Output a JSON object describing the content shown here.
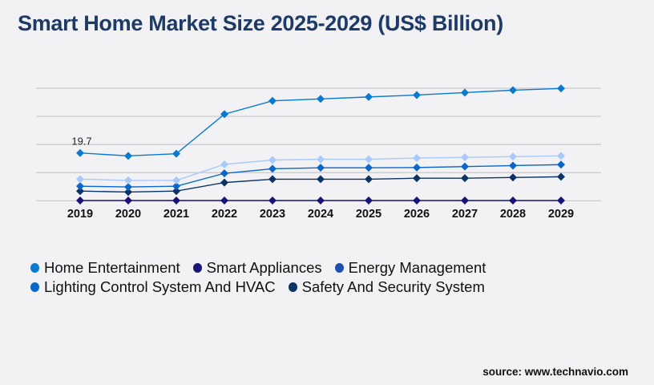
{
  "title": "Smart Home Market Size 2025-2029 (US$ Billion)",
  "source": "source: www.technavio.com",
  "chart_data": {
    "type": "line",
    "title": "Smart Home Market Size 2025-2029 (US$ Billion)",
    "xlabel": "",
    "ylabel": "",
    "categories": [
      "2019",
      "2020",
      "2021",
      "2022",
      "2023",
      "2024",
      "2025",
      "2026",
      "2027",
      "2028",
      "2029"
    ],
    "ylim": [
      0,
      46.4
    ],
    "grid": true,
    "legend_position": "bottom",
    "annotations": [
      {
        "series": "Home Entertainment",
        "category": "2019",
        "text": "19.7"
      }
    ],
    "series": [
      {
        "name": "Home Entertainment",
        "color": "#0a7ad0",
        "legend_color": "#0a7ad0",
        "values": [
          19.7,
          18.5,
          19.4,
          35.7,
          41.2,
          42.0,
          42.8,
          43.6,
          44.6,
          45.6,
          46.3
        ]
      },
      {
        "name": "Smart Appliances",
        "color": "#1b1478",
        "legend_color": "#1b1478",
        "values": [
          0.1,
          0.1,
          0.1,
          0.1,
          0.1,
          0.1,
          0.1,
          0.1,
          0.1,
          0.1,
          0.1
        ]
      },
      {
        "name": "Energy Management",
        "color": "#a9c8fb",
        "legend_color": "#1e4fae",
        "values": [
          8.9,
          8.4,
          8.4,
          15.0,
          16.8,
          17.1,
          17.1,
          17.6,
          17.9,
          18.2,
          18.5
        ]
      },
      {
        "name": "Lighting Control System And HVAC",
        "color": "#0a66c8",
        "legend_color": "#0a66c8",
        "values": [
          6.0,
          5.7,
          6.0,
          11.3,
          13.2,
          13.6,
          13.6,
          13.7,
          14.1,
          14.5,
          14.9
        ]
      },
      {
        "name": "Safety And Security System",
        "color": "#0b3465",
        "legend_color": "#0b3465",
        "values": [
          4.0,
          3.6,
          4.0,
          7.5,
          8.9,
          8.9,
          8.9,
          9.3,
          9.3,
          9.6,
          9.9
        ]
      }
    ]
  }
}
